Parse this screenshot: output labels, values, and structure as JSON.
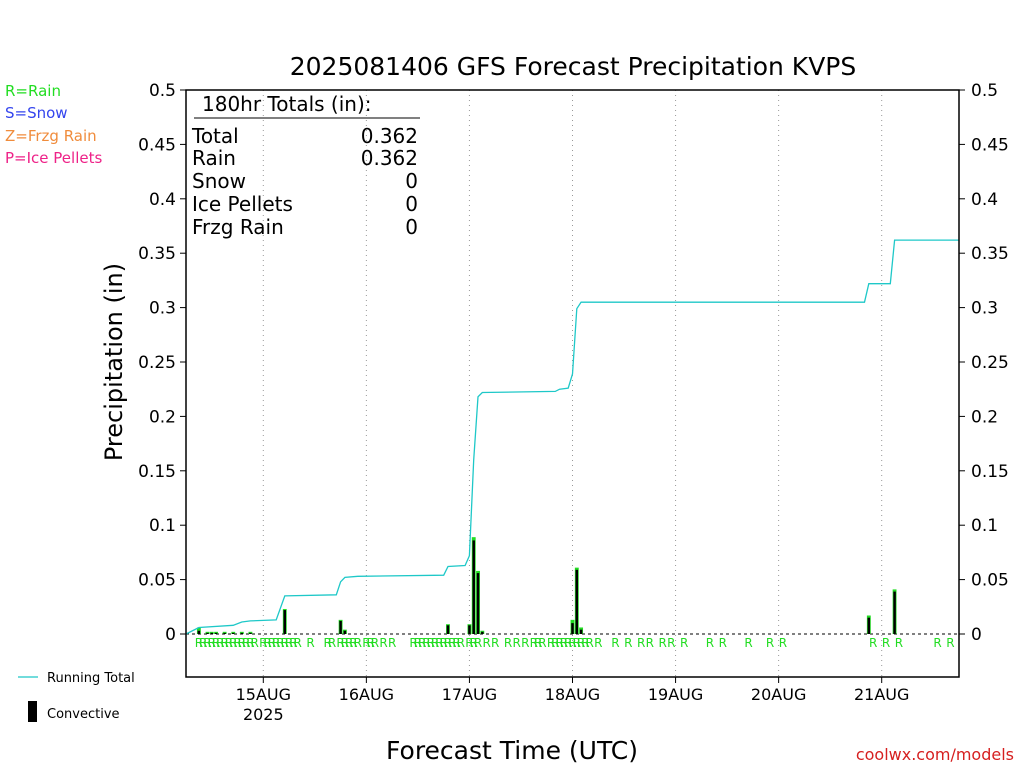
{
  "title": "2025081406 GFS Forecast Precipitation KVPS",
  "ylabel": "Precipitation (in)",
  "xlabel": "Forecast Time (UTC)",
  "credit": "coolwx.com/models",
  "type_legend": [
    {
      "text": "R=Rain",
      "color": "#22dd22"
    },
    {
      "text": "S=Snow",
      "color": "#3344ee"
    },
    {
      "text": "Z=Frzg Rain",
      "color": "#f08c3c"
    },
    {
      "text": "P=Ice Pellets",
      "color": "#ee2288"
    }
  ],
  "series_legend": {
    "running_total": "Running Total",
    "convective": "Convective"
  },
  "totals": {
    "heading": "180hr Totals (in):",
    "rows": [
      {
        "label": "Total",
        "value": "0.362"
      },
      {
        "label": "Rain",
        "value": "0.362"
      },
      {
        "label": "Snow",
        "value": "0"
      },
      {
        "label": "Ice Pellets",
        "value": "0"
      },
      {
        "label": "Frzg Rain",
        "value": "0"
      }
    ]
  },
  "colors": {
    "running_total": "#1ec8c8",
    "bar_outline": "#22dd22",
    "convective": "#000000",
    "rain_marker": "#22dd22",
    "grid": "#999999"
  },
  "chart_data": {
    "type": "bar",
    "title": "2025081406 GFS Forecast Precipitation KVPS",
    "xlabel": "Forecast Time (UTC)",
    "ylabel": "Precipitation (in)",
    "x_unit": "forecast hours from 2025-08-14 06Z",
    "xlim": [
      0,
      180
    ],
    "ylim": [
      0,
      0.5
    ],
    "yticks": [
      0,
      0.05,
      0.1,
      0.15,
      0.2,
      0.25,
      0.3,
      0.35,
      0.4,
      0.45,
      0.5
    ],
    "ytick_labels": [
      "0",
      "0.05",
      "0.1",
      "0.15",
      "0.2",
      "0.25",
      "0.3",
      "0.35",
      "0.4",
      "0.45",
      "0.5"
    ],
    "xticks": [
      {
        "hour": 18,
        "label": "15AUG",
        "sublabel": "2025"
      },
      {
        "hour": 42,
        "label": "16AUG"
      },
      {
        "hour": 66,
        "label": "17AUG"
      },
      {
        "hour": 90,
        "label": "18AUG"
      },
      {
        "hour": 114,
        "label": "19AUG"
      },
      {
        "hour": 138,
        "label": "20AUG"
      },
      {
        "hour": 162,
        "label": "21AUG"
      }
    ],
    "grid": "vertical dotted at day boundaries",
    "bars": [
      {
        "hour": 3,
        "value": 0.006,
        "convective": 0.003
      },
      {
        "hour": 5,
        "value": 0.002,
        "convective": 0.001
      },
      {
        "hour": 6,
        "value": 0.002,
        "convective": 0.001
      },
      {
        "hour": 7,
        "value": 0.002,
        "convective": 0.001
      },
      {
        "hour": 9,
        "value": 0.002,
        "convective": 0.001
      },
      {
        "hour": 11,
        "value": 0.002,
        "convective": 0.001
      },
      {
        "hour": 13,
        "value": 0.002,
        "convective": 0.001
      },
      {
        "hour": 15,
        "value": 0.002,
        "convective": 0.001
      },
      {
        "hour": 23,
        "value": 0.023,
        "convective": 0.022
      },
      {
        "hour": 36,
        "value": 0.013,
        "convective": 0.012
      },
      {
        "hour": 37,
        "value": 0.004,
        "convective": 0.003
      },
      {
        "hour": 61,
        "value": 0.009,
        "convective": 0.008
      },
      {
        "hour": 66,
        "value": 0.009,
        "convective": 0.008
      },
      {
        "hour": 67,
        "value": 0.089,
        "convective": 0.086
      },
      {
        "hour": 68,
        "value": 0.058,
        "convective": 0.056
      },
      {
        "hour": 69,
        "value": 0.003,
        "convective": 0.002
      },
      {
        "hour": 90,
        "value": 0.013,
        "convective": 0.01
      },
      {
        "hour": 91,
        "value": 0.061,
        "convective": 0.059
      },
      {
        "hour": 92,
        "value": 0.006,
        "convective": 0.004
      },
      {
        "hour": 159,
        "value": 0.017,
        "convective": 0.015
      },
      {
        "hour": 165,
        "value": 0.041,
        "convective": 0.039
      }
    ],
    "running_total": [
      {
        "hour": 0,
        "value": 0
      },
      {
        "hour": 3,
        "value": 0.006
      },
      {
        "hour": 11,
        "value": 0.008
      },
      {
        "hour": 13,
        "value": 0.011
      },
      {
        "hour": 15,
        "value": 0.012
      },
      {
        "hour": 21,
        "value": 0.013
      },
      {
        "hour": 23,
        "value": 0.035
      },
      {
        "hour": 35,
        "value": 0.036
      },
      {
        "hour": 36,
        "value": 0.048
      },
      {
        "hour": 37,
        "value": 0.052
      },
      {
        "hour": 40,
        "value": 0.053
      },
      {
        "hour": 60,
        "value": 0.054
      },
      {
        "hour": 61,
        "value": 0.062
      },
      {
        "hour": 65,
        "value": 0.063
      },
      {
        "hour": 66,
        "value": 0.072
      },
      {
        "hour": 67,
        "value": 0.16
      },
      {
        "hour": 68,
        "value": 0.218
      },
      {
        "hour": 69,
        "value": 0.222
      },
      {
        "hour": 86,
        "value": 0.223
      },
      {
        "hour": 87,
        "value": 0.225
      },
      {
        "hour": 89,
        "value": 0.226
      },
      {
        "hour": 90,
        "value": 0.239
      },
      {
        "hour": 91,
        "value": 0.299
      },
      {
        "hour": 92,
        "value": 0.305
      },
      {
        "hour": 158,
        "value": 0.305
      },
      {
        "hour": 159,
        "value": 0.322
      },
      {
        "hour": 164,
        "value": 0.322
      },
      {
        "hour": 165,
        "value": 0.362
      },
      {
        "hour": 180,
        "value": 0.362
      }
    ],
    "precip_type_markers": {
      "symbol": "R",
      "hours": [
        3,
        4,
        5,
        6,
        7,
        8,
        9,
        10,
        11,
        12,
        13,
        14,
        15,
        16,
        18,
        19,
        20,
        21,
        22,
        23,
        24,
        25,
        26,
        29,
        33,
        34,
        36,
        37,
        38,
        39,
        40,
        42,
        43,
        44,
        46,
        48,
        53,
        54,
        55,
        56,
        57,
        58,
        59,
        60,
        61,
        62,
        63,
        64,
        66,
        67,
        68,
        70,
        72,
        75,
        77,
        79,
        81,
        82,
        83,
        85,
        86,
        87,
        88,
        89,
        90,
        91,
        92,
        93,
        94,
        96,
        100,
        103,
        106,
        108,
        111,
        113,
        116,
        122,
        125,
        131,
        136,
        139,
        160,
        163,
        166,
        175,
        178
      ]
    }
  }
}
